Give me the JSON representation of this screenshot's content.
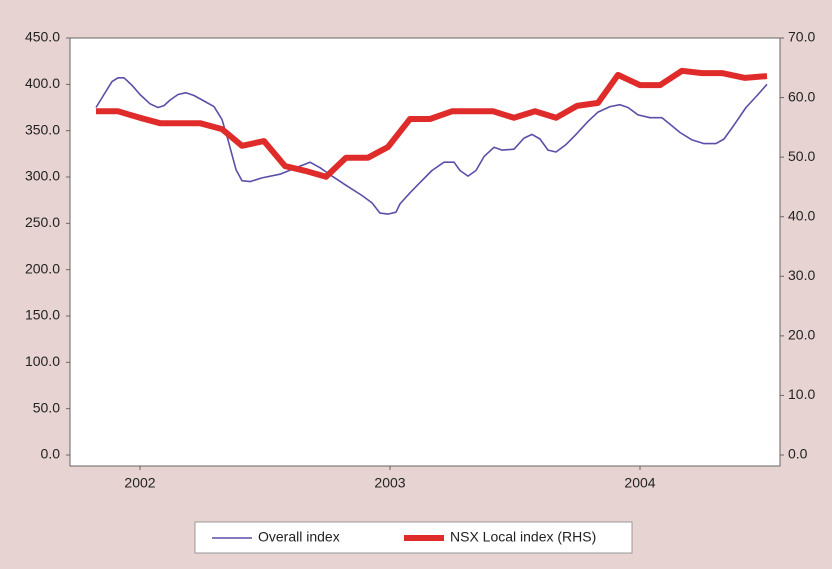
{
  "chart_data": {
    "type": "line",
    "x_ticks_note_free": null,
    "xlim": [
      2001.72,
      2004.56
    ],
    "xticks": [
      2002,
      2003,
      2004
    ],
    "ylim": [
      0,
      450
    ],
    "yticks": [
      {
        "value": 0,
        "label": "0.0"
      },
      {
        "value": 50,
        "label": "50.0"
      },
      {
        "value": 100,
        "label": "100.0"
      },
      {
        "value": 150,
        "label": "150.0"
      },
      {
        "value": 200,
        "label": "200.0"
      },
      {
        "value": 250,
        "label": "250.0"
      },
      {
        "value": 300,
        "label": "300.0"
      },
      {
        "value": 350,
        "label": "350.0"
      },
      {
        "value": 400,
        "label": "400.0"
      },
      {
        "value": 450,
        "label": "450.0"
      }
    ],
    "y2lim": [
      0,
      70
    ],
    "y2ticks": [
      {
        "value": 0,
        "label": "0.0"
      },
      {
        "value": 10,
        "label": "10.0"
      },
      {
        "value": 20,
        "label": "20.0"
      },
      {
        "value": 30,
        "label": "30.0"
      },
      {
        "value": 40,
        "label": "40.0"
      },
      {
        "value": 50,
        "label": "50.0"
      },
      {
        "value": 60,
        "label": "60.0"
      },
      {
        "value": 70,
        "label": "70.0"
      }
    ],
    "grid": false,
    "legend": "bottom",
    "series": [
      {
        "name": "Overall index",
        "color": "#5a4fa8",
        "axis": "y",
        "x": [
          2001.824,
          2001.856,
          2001.888,
          2001.912,
          2001.936,
          2001.968,
          2002,
          2002.04,
          2002.072,
          2002.096,
          2002.12,
          2002.152,
          2002.184,
          2002.216,
          2002.256,
          2002.296,
          2002.328,
          2002.352,
          2002.384,
          2002.408,
          2002.44,
          2002.488,
          2002.56,
          2002.624,
          2002.68,
          2002.72,
          2002.768,
          2002.824,
          2002.888,
          2002.928,
          2002.96,
          2002.992,
          2003.024,
          2003.04,
          2003.08,
          2003.12,
          2003.168,
          2003.216,
          2003.256,
          2003.28,
          2003.312,
          2003.344,
          2003.376,
          2003.416,
          2003.448,
          2003.496,
          2003.536,
          2003.568,
          2003.6,
          2003.632,
          2003.664,
          2003.704,
          2003.744,
          2003.792,
          2003.832,
          2003.88,
          2003.92,
          2003.952,
          2003.992,
          2004.04,
          2004.088,
          2004.12,
          2004.16,
          2004.208,
          2004.256,
          2004.304,
          2004.336,
          2004.376,
          2004.424,
          2004.472,
          2004.508
        ],
        "values": [
          375,
          389,
          403,
          407,
          407,
          399,
          389,
          379,
          375,
          377,
          383,
          389,
          391,
          388,
          382,
          376,
          362,
          340,
          308,
          296,
          295,
          299,
          303,
          310,
          316,
          310,
          301,
          291,
          280,
          272,
          261,
          260,
          262,
          271,
          283,
          294,
          307,
          316,
          316,
          307,
          301,
          307,
          322,
          332,
          329,
          330,
          342,
          346,
          341,
          329,
          327,
          335,
          346,
          360,
          370,
          376,
          378,
          375,
          367,
          364,
          364,
          357,
          348,
          340,
          336,
          336,
          341,
          356,
          375,
          389,
          400
        ]
      },
      {
        "name": "NSX Local index (RHS)",
        "color": "#e02b2b",
        "axis": "y2",
        "x": [
          2001.824,
          2001.912,
          2002,
          2002.08,
          2002.16,
          2002.24,
          2002.328,
          2002.408,
          2002.496,
          2002.58,
          2002.66,
          2002.744,
          2002.824,
          2002.912,
          2002.992,
          2003.08,
          2003.16,
          2003.248,
          2003.328,
          2003.412,
          2003.496,
          2003.58,
          2003.664,
          2003.748,
          2003.832,
          2003.912,
          2004,
          2004.08,
          2004.168,
          2004.248,
          2004.328,
          2004.42,
          2004.508
        ],
        "values": [
          57.7,
          57.7,
          56.6,
          55.7,
          55.7,
          55.7,
          54.7,
          51.9,
          52.7,
          48.5,
          47.7,
          46.7,
          49.9,
          49.9,
          51.7,
          56.4,
          56.4,
          57.7,
          57.7,
          57.7,
          56.6,
          57.7,
          56.6,
          58.6,
          59.1,
          63.8,
          62.1,
          62.1,
          64.5,
          64.1,
          64.1,
          63.3,
          63.6
        ]
      }
    ]
  }
}
